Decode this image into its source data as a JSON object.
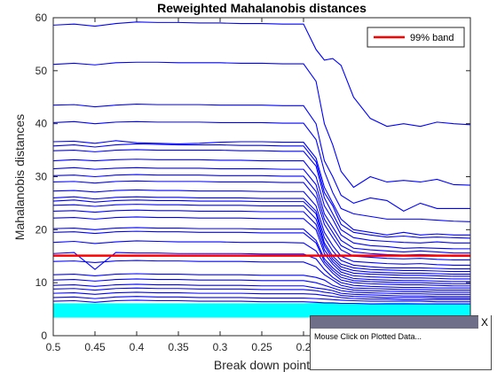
{
  "chart_data": {
    "type": "line",
    "title": "Reweighted Mahalanobis distances",
    "xlabel": "Break down point",
    "ylabel": "Mahalanobis distances",
    "xlim": [
      0.5,
      0.0
    ],
    "ylim": [
      0,
      60
    ],
    "x_reversed": true,
    "xticks": [
      0.5,
      0.45,
      0.4,
      0.35,
      0.3,
      0.25,
      0.2
    ],
    "xtick_labels": [
      "0.5",
      "0.45",
      "0.4",
      "0.35",
      "0.3",
      "0.25",
      "0.2"
    ],
    "yticks": [
      0,
      10,
      20,
      30,
      40,
      50,
      60
    ],
    "ytick_labels": [
      "0",
      "10",
      "20",
      "30",
      "40",
      "50",
      "60"
    ],
    "x": [
      0.5,
      0.475,
      0.45,
      0.425,
      0.4,
      0.375,
      0.35,
      0.325,
      0.3,
      0.275,
      0.25,
      0.225,
      0.2,
      0.185,
      0.175,
      0.165,
      0.155,
      0.14,
      0.12,
      0.1,
      0.08,
      0.06,
      0.04,
      0.02,
      0.0
    ],
    "series_color": "#0000ff",
    "band_fill_color": "#00ffff",
    "band_region_ylim": [
      3.5,
      6.0
    ],
    "reference_line": {
      "name": "99% band",
      "y": 15.1,
      "color": "#ff0000"
    },
    "legend": {
      "position": "top-right",
      "entries": [
        "99% band"
      ]
    },
    "series": [
      {
        "values": [
          58.6,
          58.8,
          58.4,
          58.9,
          59.2,
          59.1,
          59.1,
          59.0,
          59.0,
          58.9,
          58.9,
          58.8,
          58.8,
          54.0,
          52.0,
          52.3,
          51.0,
          45.0,
          41.0,
          39.5,
          40.0,
          39.5,
          40.3,
          40.0,
          39.8
        ]
      },
      {
        "values": [
          51.2,
          51.4,
          51.1,
          51.5,
          51.6,
          51.6,
          51.5,
          51.5,
          51.5,
          51.4,
          51.4,
          51.3,
          51.3,
          48.0,
          40.0,
          36.0,
          31.0,
          28.0,
          30.0,
          29.0,
          29.3,
          29.0,
          29.5,
          28.5,
          28.4
        ]
      },
      {
        "values": [
          43.5,
          43.6,
          43.2,
          43.5,
          43.7,
          43.6,
          43.6,
          43.6,
          43.5,
          43.5,
          43.5,
          43.4,
          43.4,
          40.0,
          33.0,
          30.0,
          26.5,
          25.0,
          26.0,
          25.5,
          23.5,
          25.0,
          24.0,
          24.0,
          24.0
        ]
      },
      {
        "values": [
          40.2,
          40.4,
          40.0,
          40.3,
          40.4,
          40.3,
          40.3,
          40.3,
          40.2,
          40.2,
          40.2,
          40.1,
          40.1,
          37.0,
          31.0,
          27.0,
          24.0,
          23.0,
          22.5,
          22.0,
          22.0,
          22.0,
          21.8,
          21.6,
          21.5
        ]
      },
      {
        "values": [
          36.6,
          36.7,
          36.3,
          36.8,
          36.4,
          36.3,
          36.2,
          36.3,
          36.5,
          36.6,
          36.6,
          36.5,
          36.5,
          33.5,
          28.0,
          25.0,
          22.0,
          20.0,
          19.5,
          19.0,
          19.5,
          19.0,
          19.2,
          19.0,
          19.0
        ]
      },
      {
        "values": [
          35.8,
          36.0,
          35.6,
          36.0,
          36.2,
          36.1,
          36.0,
          36.0,
          36.0,
          35.9,
          35.9,
          35.8,
          35.8,
          32.8,
          27.0,
          24.5,
          21.0,
          19.5,
          19.0,
          18.6,
          18.8,
          18.5,
          18.6,
          18.5,
          18.4
        ]
      },
      {
        "values": [
          34.9,
          35.0,
          34.7,
          35.0,
          35.1,
          35.0,
          35.0,
          35.0,
          35.0,
          34.9,
          34.9,
          34.8,
          34.8,
          32.0,
          26.0,
          23.0,
          20.0,
          18.5,
          18.0,
          17.8,
          17.6,
          17.5,
          17.7,
          17.5,
          17.5
        ]
      },
      {
        "values": [
          33.0,
          33.2,
          33.0,
          33.2,
          33.3,
          33.2,
          33.2,
          33.2,
          33.1,
          33.1,
          33.0,
          33.0,
          33.0,
          30.0,
          24.5,
          22.0,
          19.0,
          17.5,
          17.0,
          16.8,
          16.5,
          16.6,
          16.5,
          16.4,
          16.4
        ]
      },
      {
        "values": [
          31.5,
          31.7,
          31.4,
          31.6,
          31.7,
          31.6,
          31.6,
          31.6,
          31.5,
          31.5,
          31.5,
          31.4,
          31.4,
          28.5,
          23.0,
          20.5,
          18.0,
          16.5,
          16.2,
          16.0,
          15.8,
          16.0,
          15.8,
          15.6,
          15.6
        ]
      },
      {
        "values": [
          30.2,
          30.3,
          30.0,
          30.3,
          30.4,
          30.3,
          30.3,
          30.3,
          30.2,
          30.2,
          30.2,
          30.1,
          30.1,
          27.2,
          22.0,
          19.5,
          17.0,
          15.8,
          15.5,
          15.3,
          15.2,
          15.3,
          15.2,
          15.0,
          15.0
        ]
      },
      {
        "values": [
          29.0,
          29.1,
          28.8,
          29.1,
          29.2,
          29.1,
          29.1,
          29.1,
          29.0,
          29.0,
          29.0,
          28.9,
          28.9,
          26.0,
          21.0,
          18.5,
          16.2,
          15.0,
          14.8,
          14.6,
          14.5,
          14.6,
          14.4,
          14.3,
          14.3
        ]
      },
      {
        "values": [
          27.3,
          27.4,
          27.1,
          27.4,
          27.5,
          27.4,
          27.4,
          27.3,
          27.3,
          27.3,
          27.2,
          27.2,
          27.2,
          24.5,
          19.5,
          17.0,
          15.0,
          14.0,
          13.8,
          13.6,
          13.5,
          13.6,
          13.4,
          13.3,
          13.3
        ]
      },
      {
        "values": [
          26.0,
          26.2,
          25.8,
          26.1,
          26.2,
          26.1,
          26.1,
          26.0,
          26.0,
          26.0,
          25.9,
          25.9,
          25.9,
          23.5,
          18.5,
          16.0,
          14.2,
          13.3,
          13.0,
          12.8,
          12.8,
          12.8,
          12.7,
          12.6,
          12.6
        ]
      },
      {
        "values": [
          25.4,
          25.6,
          25.2,
          25.5,
          25.6,
          25.5,
          25.5,
          25.4,
          25.4,
          25.4,
          25.3,
          25.3,
          25.3,
          23.0,
          17.5,
          15.0,
          13.5,
          12.8,
          12.5,
          12.4,
          12.3,
          12.3,
          12.2,
          12.1,
          12.1
        ]
      },
      {
        "values": [
          24.6,
          24.7,
          24.4,
          24.7,
          24.8,
          24.7,
          24.7,
          24.6,
          24.6,
          24.6,
          24.5,
          24.5,
          24.5,
          22.0,
          17.0,
          14.5,
          13.0,
          12.3,
          12.0,
          11.9,
          11.8,
          11.8,
          11.7,
          11.6,
          11.6
        ]
      },
      {
        "values": [
          23.5,
          23.6,
          23.3,
          23.6,
          23.7,
          23.6,
          23.6,
          23.5,
          23.5,
          23.5,
          23.4,
          23.4,
          23.4,
          21.0,
          16.2,
          14.0,
          12.5,
          11.8,
          11.6,
          11.5,
          11.4,
          11.4,
          11.3,
          11.2,
          11.2
        ]
      },
      {
        "values": [
          22.2,
          22.3,
          22.0,
          22.3,
          22.4,
          22.3,
          22.3,
          22.2,
          22.2,
          22.2,
          22.1,
          22.1,
          22.1,
          20.0,
          15.5,
          13.5,
          12.0,
          11.3,
          11.1,
          11.0,
          10.9,
          10.9,
          10.8,
          10.7,
          10.7
        ]
      },
      {
        "values": [
          20.2,
          20.3,
          20.0,
          20.3,
          20.4,
          20.3,
          20.3,
          20.2,
          20.2,
          20.2,
          20.1,
          20.1,
          20.1,
          18.0,
          14.5,
          12.8,
          11.5,
          10.8,
          10.6,
          10.5,
          10.4,
          10.4,
          10.3,
          10.2,
          10.2
        ]
      },
      {
        "values": [
          19.5,
          19.6,
          19.3,
          19.6,
          19.7,
          19.6,
          19.6,
          19.5,
          19.5,
          19.5,
          19.4,
          19.4,
          19.4,
          17.5,
          14.0,
          12.3,
          11.0,
          10.4,
          10.2,
          10.1,
          10.0,
          10.0,
          9.9,
          9.8,
          9.8
        ]
      },
      {
        "values": [
          17.6,
          17.8,
          17.4,
          17.7,
          17.9,
          17.8,
          17.7,
          17.7,
          17.7,
          17.6,
          17.6,
          17.6,
          17.5,
          16.0,
          13.5,
          11.8,
          10.5,
          10.0,
          9.8,
          9.7,
          9.6,
          9.6,
          9.5,
          9.4,
          9.4
        ]
      },
      {
        "values": [
          15.5,
          15.7,
          12.5,
          15.7,
          15.6,
          15.6,
          15.5,
          15.5,
          15.5,
          15.5,
          15.4,
          15.4,
          15.4,
          14.5,
          12.5,
          11.0,
          10.0,
          9.5,
          9.3,
          9.2,
          9.1,
          9.1,
          9.0,
          9.0,
          9.0
        ]
      },
      {
        "values": [
          14.0,
          14.1,
          13.8,
          14.1,
          14.2,
          14.1,
          14.1,
          14.0,
          14.0,
          14.0,
          13.9,
          13.9,
          13.9,
          13.0,
          11.5,
          10.5,
          9.5,
          9.0,
          8.9,
          8.8,
          8.7,
          8.7,
          8.6,
          8.6,
          8.6
        ]
      },
      {
        "values": [
          11.5,
          11.6,
          11.3,
          11.6,
          11.7,
          11.6,
          11.6,
          11.5,
          11.5,
          11.5,
          11.4,
          11.4,
          11.4,
          11.0,
          10.5,
          9.5,
          9.0,
          8.6,
          8.5,
          8.4,
          8.3,
          8.3,
          8.2,
          8.2,
          8.2
        ]
      },
      {
        "values": [
          10.5,
          10.6,
          10.3,
          10.6,
          10.7,
          10.6,
          10.6,
          10.5,
          10.5,
          10.5,
          10.4,
          10.4,
          10.4,
          10.0,
          9.5,
          9.0,
          8.5,
          8.2,
          8.1,
          8.0,
          7.9,
          7.9,
          7.8,
          7.8,
          7.8
        ]
      },
      {
        "values": [
          9.5,
          9.6,
          9.3,
          9.6,
          9.7,
          9.6,
          9.6,
          9.5,
          9.5,
          9.5,
          9.4,
          9.4,
          9.4,
          9.0,
          8.8,
          8.5,
          8.0,
          7.8,
          7.7,
          7.6,
          7.5,
          7.5,
          7.4,
          7.4,
          7.4
        ]
      },
      {
        "values": [
          8.8,
          8.9,
          8.6,
          8.9,
          9.0,
          8.9,
          8.9,
          8.8,
          8.8,
          8.8,
          8.7,
          8.7,
          8.7,
          8.5,
          8.2,
          8.0,
          7.6,
          7.4,
          7.3,
          7.2,
          7.2,
          7.2,
          7.1,
          7.1,
          7.1
        ]
      },
      {
        "values": [
          8.0,
          8.1,
          7.8,
          8.1,
          8.2,
          8.1,
          8.1,
          8.0,
          8.0,
          8.0,
          7.9,
          7.9,
          7.9,
          7.8,
          7.6,
          7.4,
          7.2,
          7.0,
          6.9,
          6.9,
          6.8,
          6.8,
          6.8,
          6.8,
          6.8
        ]
      },
      {
        "values": [
          7.2,
          7.3,
          7.0,
          7.3,
          7.4,
          7.3,
          7.3,
          7.2,
          7.2,
          7.2,
          7.1,
          7.1,
          7.1,
          7.0,
          6.9,
          6.8,
          6.7,
          6.6,
          6.5,
          6.5,
          6.5,
          6.5,
          6.4,
          6.4,
          6.4
        ]
      },
      {
        "values": [
          6.5,
          6.6,
          6.3,
          6.6,
          6.7,
          6.6,
          6.6,
          6.5,
          6.5,
          6.5,
          6.4,
          6.4,
          6.4,
          6.3,
          6.2,
          6.2,
          6.1,
          6.1,
          6.0,
          6.0,
          6.0,
          6.0,
          6.0,
          6.0,
          6.0
        ]
      }
    ]
  },
  "popup": {
    "close_label": "X",
    "message": "Mouse Click on Plotted Data..."
  }
}
